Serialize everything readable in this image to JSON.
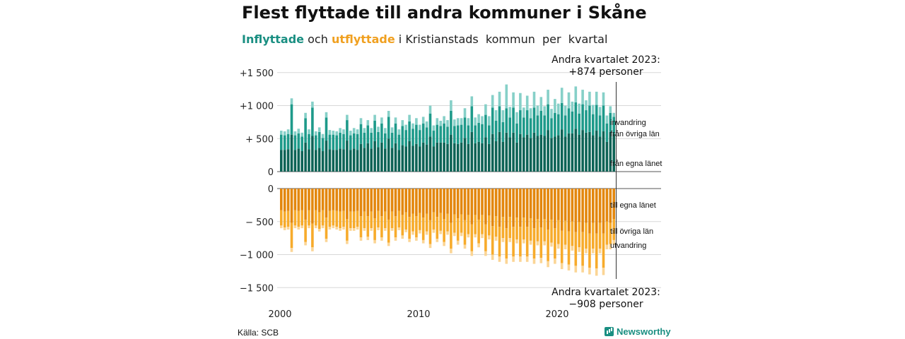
{
  "title": "Flest flyttade till andra kommuner i Skåne",
  "subtitle": {
    "in_label": "Inflyttade",
    "mid1": "och",
    "out_label": "utflyttade",
    "mid2": "i Kristianstads  kommun  per  kvartal"
  },
  "source": "Källa: SCB",
  "brand": "Newsworthy",
  "colors": {
    "in_own": "#0d6356",
    "in_other": "#1e9a8a",
    "in_imm": "#86d0c8",
    "out_own": "#e3870d",
    "out_other": "#f7ab2b",
    "out_emig": "#fbd595"
  },
  "annotations": {
    "top_line1": "Andra kvartalet 2023:",
    "top_line2": "+874 personer",
    "bottom_line1": "Andra kvartalet 2023:",
    "bottom_line2": "−908 personer"
  },
  "chart_data": {
    "type": "bar",
    "stacked": true,
    "x_start_year": 2000,
    "x_tick_labels": [
      "2000",
      "2010",
      "2020"
    ],
    "y_ticks_top": [
      {
        "value": 1500,
        "label": "+1 500"
      },
      {
        "value": 1000,
        "label": "+1 000"
      },
      {
        "value": 500,
        "label": "+  500"
      },
      {
        "value": 0,
        "label": "0"
      }
    ],
    "y_ticks_bottom": [
      {
        "value": 0,
        "label": "0"
      },
      {
        "value": -500,
        "label": "−  500"
      },
      {
        "value": -1000,
        "label": "−1 000"
      },
      {
        "value": -1500,
        "label": "−1 500"
      }
    ],
    "series_in": [
      {
        "name": "från egna länet",
        "label": "från egna länet",
        "values": [
          330,
          330,
          340,
          560,
          330,
          350,
          310,
          440,
          340,
          540,
          330,
          360,
          310,
          470,
          340,
          330,
          330,
          350,
          340,
          470,
          330,
          350,
          330,
          420,
          360,
          430,
          350,
          460,
          370,
          440,
          350,
          500,
          360,
          430,
          330,
          400,
          380,
          460,
          390,
          420,
          380,
          440,
          410,
          530,
          380,
          440,
          440,
          440,
          420,
          560,
          430,
          420,
          440,
          510,
          420,
          600,
          430,
          450,
          430,
          520,
          420,
          570,
          460,
          600,
          450,
          590,
          520,
          590,
          440,
          570,
          520,
          560,
          510,
          590,
          540,
          560,
          540,
          630,
          510,
          530,
          550,
          640,
          530,
          580,
          580,
          650,
          560,
          630,
          590,
          600,
          550,
          620,
          530,
          610,
          450,
          600,
          570
        ]
      },
      {
        "name": "från övriga län",
        "label": "från övriga län",
        "values": [
          230,
          220,
          230,
          460,
          220,
          230,
          220,
          370,
          230,
          430,
          220,
          240,
          200,
          350,
          220,
          230,
          220,
          240,
          230,
          310,
          220,
          230,
          240,
          300,
          230,
          270,
          240,
          310,
          230,
          290,
          230,
          330,
          230,
          300,
          230,
          290,
          250,
          300,
          260,
          290,
          250,
          290,
          260,
          350,
          240,
          270,
          250,
          290,
          260,
          360,
          260,
          280,
          270,
          310,
          280,
          390,
          270,
          290,
          290,
          340,
          280,
          400,
          310,
          390,
          300,
          370,
          300,
          380,
          290,
          360,
          300,
          370,
          300,
          380,
          310,
          360,
          310,
          390,
          300,
          360,
          320,
          400,
          320,
          380,
          330,
          400,
          320,
          390,
          340,
          400,
          320,
          390,
          320,
          390,
          280,
          290,
          260
        ]
      },
      {
        "name": "invandring",
        "label": "invandring",
        "values": [
          60,
          60,
          70,
          90,
          60,
          70,
          60,
          80,
          70,
          90,
          60,
          70,
          60,
          80,
          70,
          60,
          60,
          70,
          70,
          80,
          70,
          80,
          70,
          90,
          70,
          80,
          70,
          90,
          80,
          90,
          80,
          90,
          80,
          90,
          80,
          90,
          80,
          100,
          80,
          100,
          80,
          100,
          90,
          120,
          80,
          100,
          80,
          110,
          100,
          160,
          100,
          110,
          100,
          140,
          110,
          150,
          120,
          130,
          120,
          160,
          140,
          190,
          160,
          220,
          180,
          360,
          160,
          230,
          170,
          260,
          150,
          220,
          150,
          240,
          150,
          210,
          140,
          220,
          140,
          210,
          160,
          230,
          150,
          240,
          150,
          240,
          150,
          220,
          150,
          210,
          140,
          200,
          130,
          200,
          120,
          100,
          60
        ]
      }
    ],
    "series_out": [
      {
        "name": "till egna länet",
        "label": "till egna länet",
        "values": [
          330,
          350,
          340,
          520,
          330,
          340,
          330,
          470,
          330,
          530,
          330,
          360,
          330,
          440,
          340,
          330,
          340,
          350,
          340,
          460,
          350,
          350,
          340,
          420,
          350,
          420,
          350,
          450,
          340,
          420,
          350,
          470,
          350,
          420,
          340,
          400,
          360,
          430,
          380,
          420,
          370,
          440,
          380,
          480,
          360,
          430,
          370,
          460,
          380,
          520,
          390,
          450,
          390,
          480,
          400,
          540,
          400,
          470,
          400,
          540,
          410,
          570,
          420,
          580,
          430,
          600,
          430,
          580,
          440,
          580,
          440,
          580,
          450,
          600,
          460,
          590,
          460,
          620,
          470,
          600,
          480,
          640,
          490,
          650,
          500,
          660,
          510,
          660,
          520,
          680,
          520,
          680,
          520,
          680,
          500,
          520,
          460
        ]
      },
      {
        "name": "till övriga län",
        "label": "till övriga län",
        "values": [
          230,
          240,
          240,
          380,
          230,
          240,
          230,
          340,
          230,
          360,
          230,
          250,
          230,
          320,
          240,
          230,
          240,
          250,
          240,
          330,
          250,
          250,
          240,
          320,
          250,
          310,
          250,
          330,
          250,
          320,
          250,
          350,
          250,
          320,
          250,
          310,
          260,
          330,
          270,
          320,
          260,
          340,
          270,
          360,
          260,
          330,
          270,
          350,
          270,
          390,
          280,
          340,
          280,
          370,
          290,
          410,
          290,
          360,
          290,
          410,
          300,
          430,
          310,
          450,
          320,
          460,
          320,
          450,
          330,
          450,
          330,
          450,
          340,
          460,
          340,
          460,
          340,
          480,
          350,
          460,
          360,
          490,
          360,
          500,
          370,
          510,
          380,
          510,
          390,
          520,
          390,
          530,
          390,
          520,
          350,
          320,
          320
        ]
      },
      {
        "name": "utvandring",
        "label": "utvandring",
        "values": [
          40,
          40,
          40,
          60,
          40,
          40,
          40,
          50,
          40,
          60,
          40,
          40,
          40,
          50,
          40,
          40,
          40,
          40,
          40,
          50,
          40,
          40,
          40,
          50,
          40,
          50,
          40,
          50,
          40,
          50,
          40,
          50,
          40,
          50,
          40,
          50,
          40,
          50,
          50,
          50,
          50,
          50,
          50,
          60,
          50,
          50,
          50,
          60,
          50,
          70,
          50,
          60,
          50,
          60,
          50,
          70,
          50,
          60,
          60,
          70,
          60,
          80,
          60,
          80,
          60,
          80,
          60,
          80,
          60,
          80,
          60,
          80,
          60,
          80,
          60,
          80,
          60,
          90,
          60,
          80,
          70,
          90,
          70,
          90,
          70,
          100,
          70,
          100,
          70,
          100,
          70,
          110,
          70,
          110,
          70,
          80,
          70
        ]
      }
    ]
  }
}
